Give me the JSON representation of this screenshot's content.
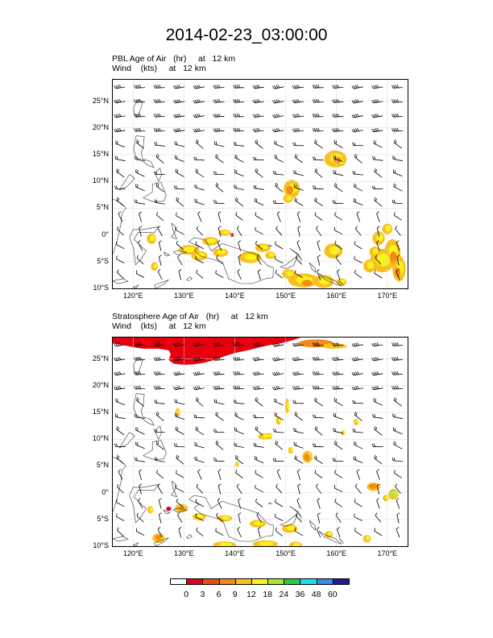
{
  "title": "2014-02-23_03:00:00",
  "panels": [
    {
      "title_line1": "PBL Age of Air   (hr)     at   12 km",
      "title_line2": "Wind    (kts)     at   12 km"
    },
    {
      "title_line1": "Stratosphere Age of Air   (hr)     at   12 km",
      "title_line2": "Wind    (kts)     at   12 km"
    }
  ],
  "map": {
    "lon_range": [
      116,
      174
    ],
    "lat_range": [
      -10,
      29
    ],
    "lat_ticks": [
      "25°N",
      "20°N",
      "15°N",
      "10°N",
      "5°N",
      "0°",
      "5°S",
      "10°S"
    ],
    "lat_tick_values": [
      25,
      20,
      15,
      10,
      5,
      0,
      -5,
      -10
    ],
    "lon_ticks": [
      "120°E",
      "130°E",
      "140°E",
      "150°E",
      "160°E",
      "170°E"
    ],
    "lon_tick_values": [
      120,
      130,
      140,
      150,
      160,
      170
    ]
  },
  "colorbar": {
    "labels": [
      "0",
      "3",
      "6",
      "9",
      "12",
      "18",
      "24",
      "36",
      "48",
      "60"
    ],
    "colors": [
      "#ffffff",
      "#e3001b",
      "#ef4a10",
      "#f38a1a",
      "#f8c01f",
      "#fbf21e",
      "#a8e83a",
      "#2ccc4a",
      "#13e3e5",
      "#3a8ae6",
      "#1c1c9a"
    ]
  }
}
